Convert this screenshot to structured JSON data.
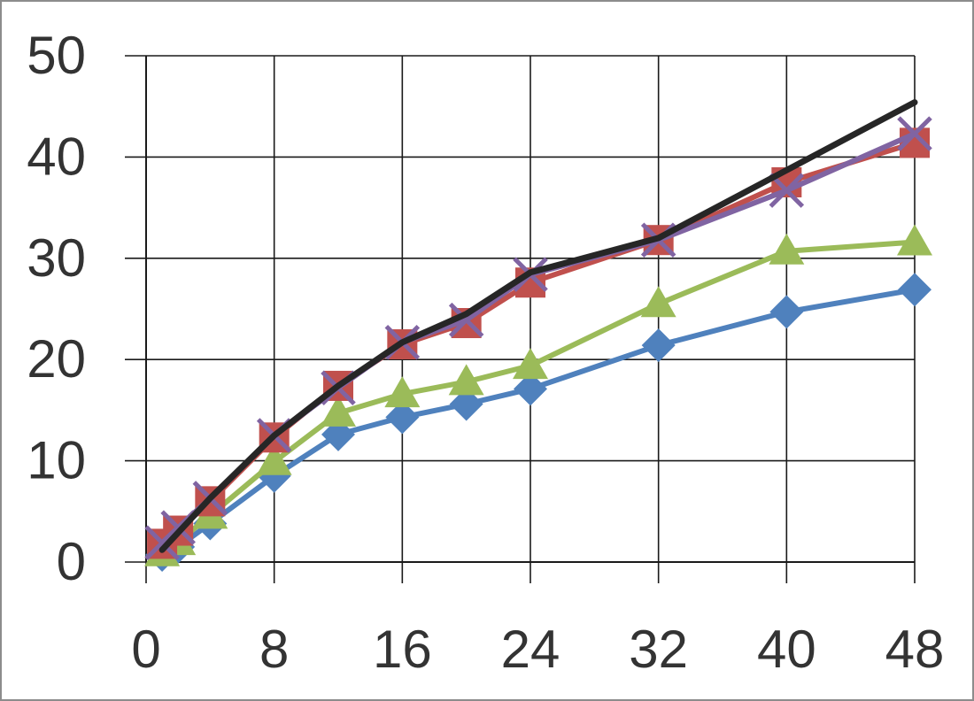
{
  "chart_data": {
    "type": "line",
    "title": "",
    "xlabel": "",
    "ylabel": "",
    "xlim": [
      0,
      48
    ],
    "ylim": [
      0,
      50
    ],
    "xticks": [
      0,
      8,
      16,
      24,
      32,
      40,
      48
    ],
    "yticks": [
      0,
      10,
      20,
      30,
      40,
      50
    ],
    "xtick_labels": [
      "0",
      "8",
      "16",
      "24",
      "32",
      "40",
      "48"
    ],
    "ytick_labels": [
      "0",
      "10",
      "20",
      "30",
      "40",
      "50"
    ],
    "grid": true,
    "legend": "none",
    "series": [
      {
        "color": "#4f81bd",
        "marker": "diamond",
        "points": [
          [
            1,
            0.7
          ],
          [
            2,
            1.5
          ],
          [
            4,
            3.8
          ],
          [
            8,
            8.5
          ],
          [
            12,
            12.6
          ],
          [
            16,
            14.3
          ],
          [
            20,
            15.6
          ],
          [
            24,
            17.1
          ],
          [
            32,
            21.4
          ],
          [
            40,
            24.7
          ],
          [
            48,
            26.9
          ]
        ]
      },
      {
        "color": "#9bbb59",
        "marker": "triangle",
        "points": [
          [
            1,
            0.9
          ],
          [
            2,
            2.0
          ],
          [
            4,
            4.6
          ],
          [
            8,
            9.9
          ],
          [
            12,
            14.7
          ],
          [
            16,
            16.6
          ],
          [
            20,
            17.8
          ],
          [
            24,
            19.4
          ],
          [
            32,
            25.5
          ],
          [
            40,
            30.7
          ],
          [
            48,
            31.6
          ]
        ]
      },
      {
        "color": "#c0504d",
        "marker": "square",
        "points": [
          [
            1,
            1.8
          ],
          [
            2,
            3.1
          ],
          [
            4,
            6.0
          ],
          [
            8,
            12.3
          ],
          [
            12,
            17.4
          ],
          [
            16,
            21.5
          ],
          [
            20,
            23.6
          ],
          [
            24,
            27.6
          ],
          [
            32,
            31.8
          ],
          [
            40,
            37.5
          ],
          [
            48,
            41.4
          ]
        ]
      },
      {
        "color": "#8064a2",
        "marker": "x",
        "points": [
          [
            1,
            1.9
          ],
          [
            2,
            3.4
          ],
          [
            4,
            6.3
          ],
          [
            8,
            12.5
          ],
          [
            12,
            17.2
          ],
          [
            16,
            21.7
          ],
          [
            20,
            23.9
          ],
          [
            24,
            28.4
          ],
          [
            32,
            31.8
          ],
          [
            40,
            36.7
          ],
          [
            48,
            42.3
          ]
        ]
      },
      {
        "color": "#262626",
        "marker": "none",
        "points": [
          [
            1,
            1.2
          ],
          [
            4,
            6.3
          ],
          [
            8,
            12.5
          ],
          [
            12,
            17.4
          ],
          [
            16,
            21.7
          ],
          [
            20,
            24.5
          ],
          [
            24,
            28.6
          ],
          [
            32,
            32.0
          ],
          [
            40,
            38.7
          ],
          [
            48,
            45.4
          ]
        ]
      }
    ]
  }
}
